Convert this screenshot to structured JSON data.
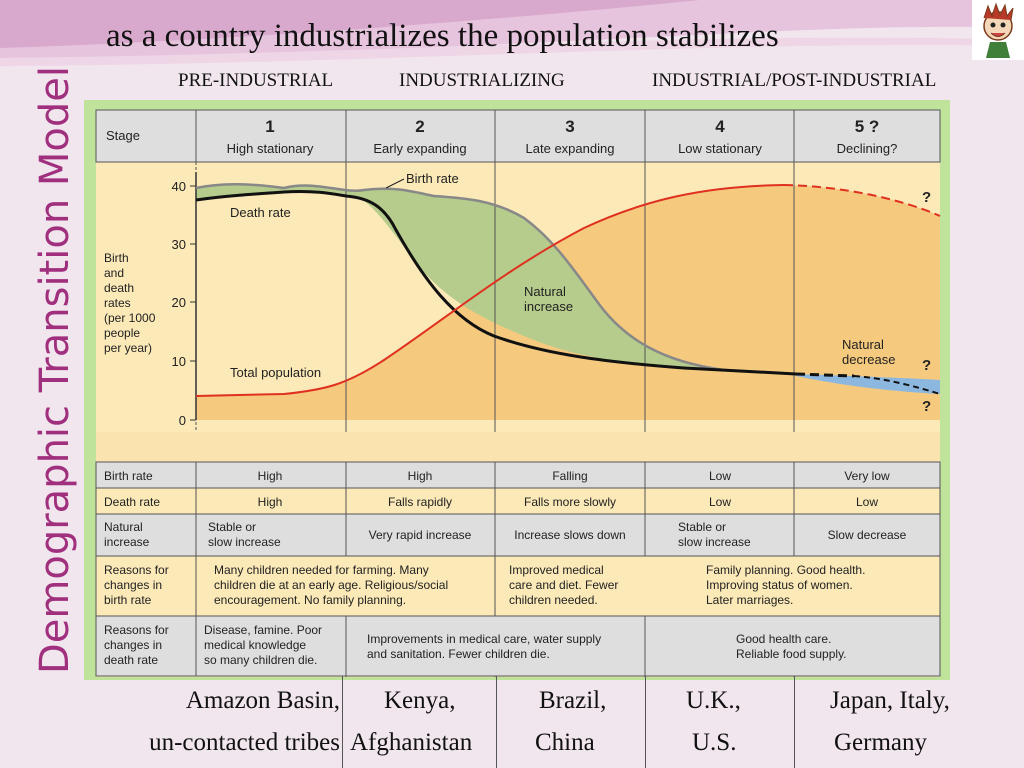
{
  "slide": {
    "vertical_title": "Demographic Transition Model",
    "headline": "as a country industrializes  the population stabilizes",
    "phases": [
      "PRE-INDUSTRIAL",
      "INDUSTRIALIZING",
      "INDUSTRIAL/POST-INDUSTRIAL"
    ]
  },
  "diagram": {
    "stage_label": "Stage",
    "stages": [
      {
        "num": "1",
        "name": "High stationary"
      },
      {
        "num": "2",
        "name": "Early expanding"
      },
      {
        "num": "3",
        "name": "Late expanding"
      },
      {
        "num": "4",
        "name": "Low stationary"
      },
      {
        "num": "5 ?",
        "name": "Declining?"
      }
    ],
    "y_axis_label": [
      "Birth",
      "and",
      "death",
      "rates",
      "(per 1000",
      "people",
      "per year)"
    ],
    "y_ticks": [
      "40",
      "30",
      "20",
      "10",
      "0"
    ],
    "curve_labels": {
      "birth_rate": "Birth rate",
      "death_rate": "Death rate",
      "natural_increase": [
        "Natural",
        "increase"
      ],
      "total_population": "Total population",
      "natural_decrease": [
        "Natural",
        "decrease"
      ],
      "question": "?"
    },
    "table": [
      {
        "label": [
          "Birth rate"
        ],
        "cells": [
          [
            "High"
          ],
          [
            "High"
          ],
          [
            "Falling"
          ],
          [
            "Low"
          ],
          [
            "Very low"
          ]
        ]
      },
      {
        "label": [
          "Death rate"
        ],
        "cells": [
          [
            "High"
          ],
          [
            "Falls rapidly"
          ],
          [
            "Falls more slowly"
          ],
          [
            "Low"
          ],
          [
            "Low"
          ]
        ]
      },
      {
        "label": [
          "Natural",
          "increase"
        ],
        "cells": [
          [
            "Stable or",
            "slow increase"
          ],
          [
            "Very rapid increase"
          ],
          [
            "Increase slows down"
          ],
          [
            "Stable or",
            "slow increase"
          ],
          [
            "Slow decrease"
          ]
        ]
      },
      {
        "label": [
          "Reasons for",
          "changes in",
          "birth rate"
        ],
        "cells": [
          [
            "Many children needed for farming. Many",
            "children die at an early age. Religious/social",
            "encouragement. No family planning."
          ],
          [
            "Improved medical",
            "care and diet. Fewer",
            "children needed."
          ],
          [
            "Family planning. Good health.",
            "Improving status of women.",
            "Later marriages."
          ]
        ]
      },
      {
        "label": [
          "Reasons for",
          "changes in",
          "death rate"
        ],
        "cells": [
          [
            "Disease, famine. Poor",
            "medical knowledge",
            "so many children die."
          ],
          [
            "Improvements in medical care, water supply",
            "and sanitation. Fewer children die."
          ],
          [
            "Good health care.",
            "Reliable food supply."
          ]
        ]
      }
    ]
  },
  "examples": [
    [
      "Amazon Basin,",
      "un-contacted tribes"
    ],
    [
      "Kenya,",
      "Afghanistan"
    ],
    [
      "Brazil,",
      "China"
    ],
    [
      "U.K.,",
      "U.S."
    ],
    [
      "Japan, Italy,",
      "Germany"
    ]
  ],
  "colors": {
    "vertical_title": "#a0307e",
    "birth_rate_line": "#888888",
    "death_rate_line": "#111111",
    "total_population_line": "#e03020",
    "natural_increase_fill": "#b5cc8c",
    "population_fill": "#f5c97e",
    "natural_decrease_fill": "#8cb8e0",
    "border_green": "#bfe39a",
    "header_grey": "#dedede"
  }
}
